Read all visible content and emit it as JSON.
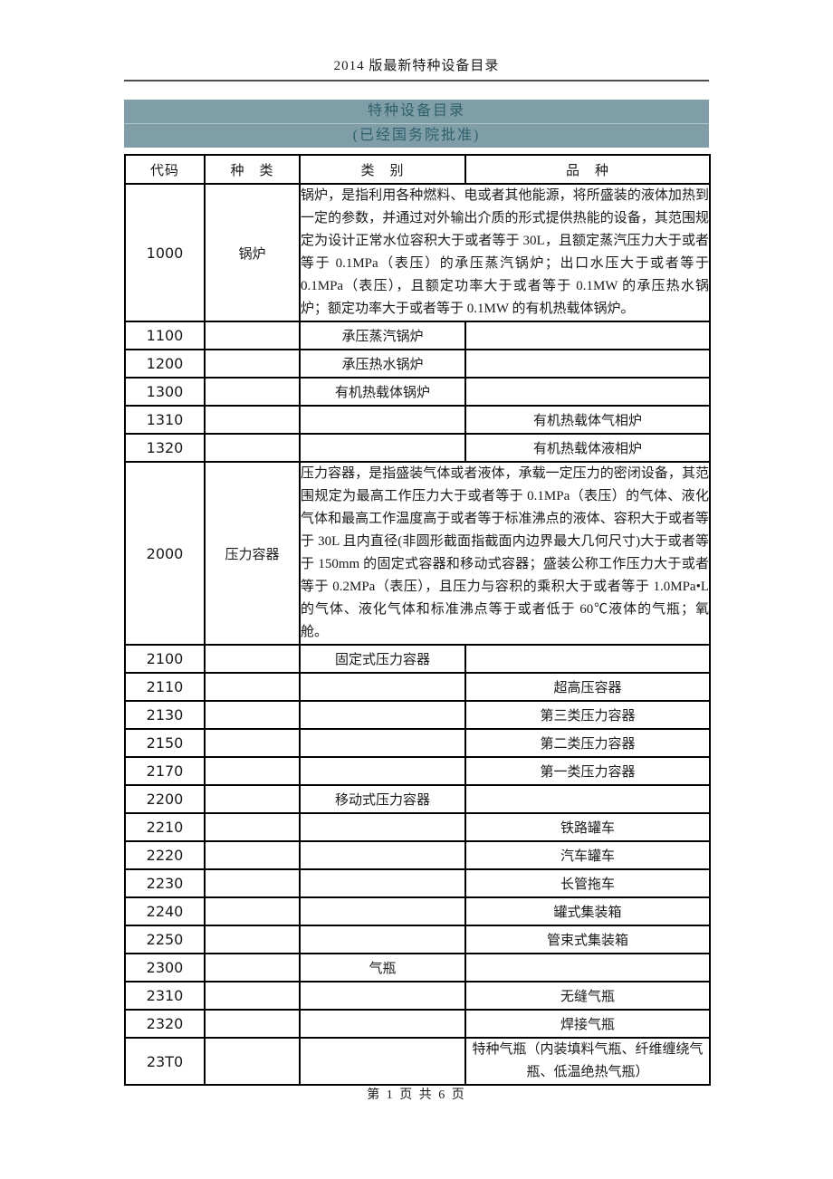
{
  "page": {
    "running_header": "2014 版最新特种设备目录",
    "footer_text": "第 1 页 共 6 页"
  },
  "colors": {
    "band_bg": "#7f9ea8",
    "band_text": "#2f616d",
    "header_rule": "#4d4d4d",
    "table_border": "#000000"
  },
  "band": {
    "title": "特种设备目录",
    "subtitle": "(已经国务院批准)"
  },
  "table": {
    "columns": [
      "代码",
      "种　类",
      "类　别",
      "品　种"
    ],
    "rows": [
      {
        "code": "1000",
        "kind": "desc",
        "category": "锅炉",
        "text": "锅炉，是指利用各种燃料、电或者其他能源，将所盛装的液体加热到一定的参数，并通过对外输出介质的形式提供热能的设备，其范围规定为设计正常水位容积大于或者等于 30L，且额定蒸汽压力大于或者等于 0.1MPa（表压）的承压蒸汽锅炉；出口水压大于或者等于 0.1MPa（表压），且额定功率大于或者等于 0.1MW 的承压热水锅炉；额定功率大于或者等于 0.1MW 的有机热载体锅炉。"
      },
      {
        "code": "1100",
        "kind": "class",
        "text": "承压蒸汽锅炉"
      },
      {
        "code": "1200",
        "kind": "class",
        "text": "承压热水锅炉"
      },
      {
        "code": "1300",
        "kind": "class",
        "text": "有机热载体锅炉"
      },
      {
        "code": "1310",
        "kind": "variety",
        "text": "有机热载体气相炉"
      },
      {
        "code": "1320",
        "kind": "variety",
        "text": "有机热载体液相炉"
      },
      {
        "code": "2000",
        "kind": "desc",
        "category": "压力容器",
        "text": "压力容器，是指盛装气体或者液体，承载一定压力的密闭设备，其范围规定为最高工作压力大于或者等于 0.1MPa（表压）的气体、液化气体和最高工作温度高于或者等于标准沸点的液体、容积大于或者等于 30L 且内直径(非圆形截面指截面内边界最大几何尺寸)大于或者等于 150mm 的固定式容器和移动式容器；盛装公称工作压力大于或者等于 0.2MPa（表压），且压力与容积的乘积大于或者等于 1.0MPa•L 的气体、液化气体和标准沸点等于或者低于 60℃液体的气瓶；氧舱。"
      },
      {
        "code": "2100",
        "kind": "class",
        "text": "固定式压力容器"
      },
      {
        "code": "2110",
        "kind": "variety",
        "text": "超高压容器"
      },
      {
        "code": "2130",
        "kind": "variety",
        "text": "第三类压力容器"
      },
      {
        "code": "2150",
        "kind": "variety",
        "text": "第二类压力容器"
      },
      {
        "code": "2170",
        "kind": "variety",
        "text": "第一类压力容器"
      },
      {
        "code": "2200",
        "kind": "class",
        "text": "移动式压力容器"
      },
      {
        "code": "2210",
        "kind": "variety",
        "text": "铁路罐车"
      },
      {
        "code": "2220",
        "kind": "variety",
        "text": "汽车罐车"
      },
      {
        "code": "2230",
        "kind": "variety",
        "text": "长管拖车"
      },
      {
        "code": "2240",
        "kind": "variety",
        "text": "罐式集装箱"
      },
      {
        "code": "2250",
        "kind": "variety",
        "text": "管束式集装箱"
      },
      {
        "code": "2300",
        "kind": "class",
        "text": "气瓶"
      },
      {
        "code": "2310",
        "kind": "variety",
        "text": "无缝气瓶"
      },
      {
        "code": "2320",
        "kind": "variety",
        "text": "焊接气瓶"
      },
      {
        "code": "23T0",
        "kind": "variety_wrap",
        "text": "特种气瓶（内装填料气瓶、纤维缠绕气瓶、低温绝热气瓶）"
      }
    ]
  }
}
